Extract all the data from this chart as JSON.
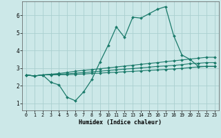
{
  "x_values": [
    0,
    1,
    2,
    3,
    4,
    5,
    6,
    7,
    8,
    9,
    10,
    11,
    12,
    13,
    14,
    15,
    16,
    17,
    18,
    19,
    20,
    21,
    22,
    23
  ],
  "line_main": [
    2.62,
    2.55,
    2.62,
    2.2,
    2.05,
    1.35,
    1.15,
    1.65,
    2.35,
    3.35,
    4.3,
    5.35,
    4.75,
    5.9,
    5.85,
    6.1,
    6.35,
    6.5,
    4.85,
    3.75,
    3.5,
    3.1,
    3.1,
    3.1
  ],
  "line_top": [
    2.62,
    2.56,
    2.62,
    2.66,
    2.7,
    2.76,
    2.83,
    2.88,
    2.92,
    2.97,
    3.02,
    3.07,
    3.12,
    3.17,
    3.22,
    3.27,
    3.32,
    3.37,
    3.42,
    3.47,
    3.52,
    3.57,
    3.62,
    3.62
  ],
  "line_mid": [
    2.62,
    2.56,
    2.62,
    2.64,
    2.66,
    2.68,
    2.72,
    2.75,
    2.79,
    2.83,
    2.87,
    2.91,
    2.95,
    2.98,
    3.02,
    3.06,
    3.1,
    3.13,
    3.16,
    3.2,
    3.26,
    3.28,
    3.32,
    3.32
  ],
  "line_bot": [
    2.62,
    2.56,
    2.62,
    2.62,
    2.63,
    2.63,
    2.65,
    2.67,
    2.7,
    2.72,
    2.75,
    2.77,
    2.8,
    2.82,
    2.85,
    2.88,
    2.9,
    2.93,
    2.96,
    2.99,
    3.04,
    3.07,
    3.1,
    3.1
  ],
  "line_color": "#1a7a6a",
  "bg_color": "#cce8e8",
  "grid_color": "#aacfcf",
  "xlabel": "Humidex (Indice chaleur)",
  "ylim": [
    0.6,
    6.8
  ],
  "xlim": [
    -0.5,
    23.5
  ],
  "yticks": [
    1,
    2,
    3,
    4,
    5,
    6
  ],
  "xticks": [
    0,
    1,
    2,
    3,
    4,
    5,
    6,
    7,
    8,
    9,
    10,
    11,
    12,
    13,
    14,
    15,
    16,
    17,
    18,
    19,
    20,
    21,
    22,
    23
  ]
}
